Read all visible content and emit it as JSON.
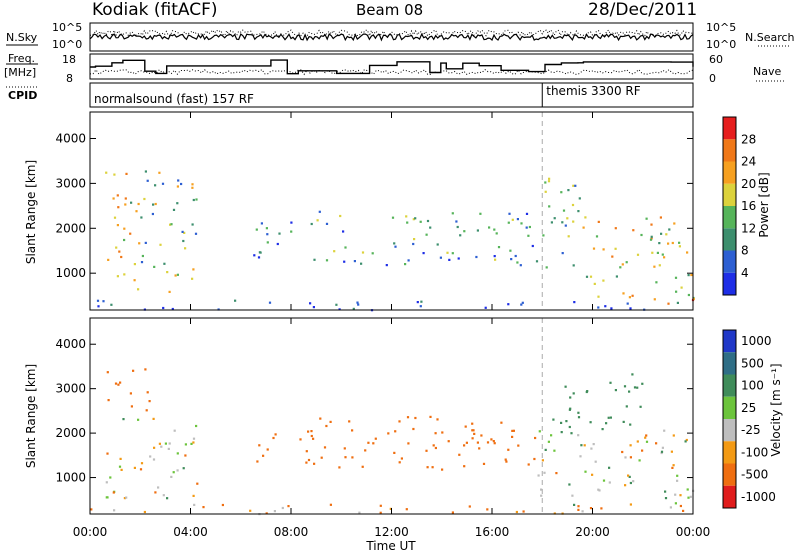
{
  "header": {
    "station": "Kodiak (fitACF)",
    "beam": "Beam 08",
    "date": "28/Dec/2011"
  },
  "summary_panels": {
    "nsky_label": "N.Sky",
    "nsky_ticks": [
      "10^5",
      "10^0"
    ],
    "nsearch_label": "N.Search",
    "nsearch_ticks": [
      "10^5",
      "10^0"
    ],
    "freq_label_1": "Freq.",
    "freq_label_2": "[MHz]",
    "freq_ticks": [
      "18",
      "8"
    ],
    "nave_label": "Nave",
    "nave_ticks": [
      "60",
      "0"
    ],
    "cpid_label": "CPID",
    "cpid_modes": [
      {
        "label": "normalsound (fast) 157 RF",
        "start_hour": 0
      },
      {
        "label": "themis 3300 RF",
        "start_hour": 18
      }
    ]
  },
  "chart_data": [
    {
      "type": "heatmap",
      "title": "",
      "xlabel": "Time UT",
      "ylabel": "Slant Range [km]",
      "x_ticks": [
        "00:00",
        "04:00",
        "08:00",
        "12:00",
        "16:00",
        "20:00",
        "00:00"
      ],
      "y_ticks": [
        1000,
        2000,
        3000,
        4000
      ],
      "xlim_hours": [
        0,
        24
      ],
      "ylim_km": [
        180,
        4590
      ],
      "colorbar_label": "Power [dB]",
      "colorbar_ticks": [
        4,
        8,
        12,
        16,
        20,
        24,
        28
      ],
      "colorbar_range": [
        0,
        32
      ],
      "colors": [
        "#1e2ee6",
        "#2d5fd2",
        "#3d8f6e",
        "#56b45a",
        "#dcd23c",
        "#f6a020",
        "#f07818",
        "#e61e1e"
      ],
      "regions": [
        {
          "t": [
            0.6,
            2.0
          ],
          "r": [
            500,
            3500
          ],
          "level": 0.62
        },
        {
          "t": [
            2.0,
            4.3
          ],
          "r": [
            600,
            3300
          ],
          "level": 0.42
        },
        {
          "t": [
            6.4,
            9.0
          ],
          "r": [
            1300,
            2200
          ],
          "level": 0.22
        },
        {
          "t": [
            9.0,
            17.8
          ],
          "r": [
            1200,
            2400
          ],
          "level": 0.34
        },
        {
          "t": [
            17.8,
            19.5
          ],
          "r": [
            1100,
            3400
          ],
          "level": 0.4
        },
        {
          "t": [
            19.5,
            24.0
          ],
          "r": [
            400,
            2300
          ],
          "level": 0.6
        },
        {
          "t": [
            21.0,
            24.0
          ],
          "r": [
            320,
            560
          ],
          "level": 0.95
        },
        {
          "t": [
            0.0,
            24.0
          ],
          "r": [
            200,
            420
          ],
          "level": 0.1
        }
      ]
    },
    {
      "type": "heatmap",
      "title": "",
      "xlabel": "Time UT",
      "ylabel": "Slant Range [km]",
      "x_ticks": [
        "00:00",
        "04:00",
        "08:00",
        "12:00",
        "16:00",
        "20:00",
        "00:00"
      ],
      "y_ticks": [
        1000,
        2000,
        3000,
        4000
      ],
      "xlim_hours": [
        0,
        24
      ],
      "ylim_km": [
        180,
        4590
      ],
      "colorbar_label": "Velocity [m s⁻¹]",
      "colorbar_ticks": [
        "1000",
        "500",
        "100",
        "25",
        "-25",
        "-100",
        "-500",
        "-1000"
      ],
      "colors": [
        "#2038c8",
        "#2f6e86",
        "#3f8c5a",
        "#6cc43c",
        "#bebebe",
        "#f39a14",
        "#ef6e10",
        "#e01c1c"
      ],
      "regions": [
        {
          "t": [
            0.6,
            4.3
          ],
          "r": [
            500,
            2400
          ],
          "velocity": 0
        },
        {
          "t": [
            0.6,
            2.5
          ],
          "r": [
            2500,
            3500
          ],
          "velocity": -150
        },
        {
          "t": [
            6.4,
            9.0
          ],
          "r": [
            1300,
            2200
          ],
          "velocity": -150
        },
        {
          "t": [
            9.0,
            17.8
          ],
          "r": [
            1200,
            2400
          ],
          "velocity": -180
        },
        {
          "t": [
            17.8,
            24.0
          ],
          "r": [
            400,
            2100
          ],
          "velocity": 0
        },
        {
          "t": [
            18.3,
            22.0
          ],
          "r": [
            2000,
            3400
          ],
          "velocity": 150
        },
        {
          "t": [
            0.0,
            24.0
          ],
          "r": [
            200,
            420
          ],
          "velocity": -60
        }
      ]
    }
  ]
}
